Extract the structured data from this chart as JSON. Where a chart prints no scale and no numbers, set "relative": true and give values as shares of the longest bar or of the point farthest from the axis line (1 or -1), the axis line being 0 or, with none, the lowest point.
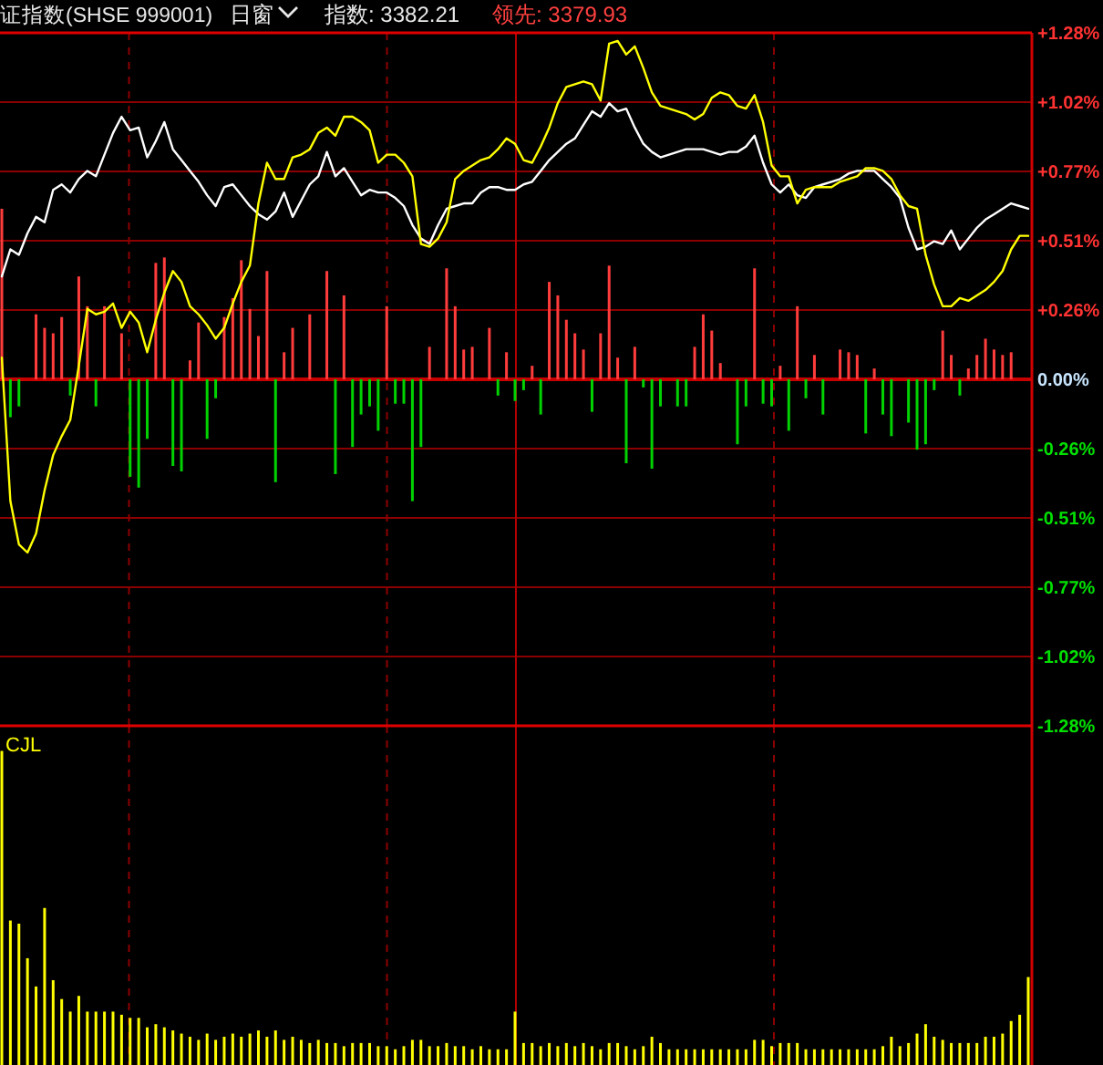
{
  "chart_data": [
    {
      "type": "line",
      "title": "证指数(SHSE 999001)",
      "annotations": [
        "日窗",
        "指数: 3382.21",
        "领先: 3379.93"
      ],
      "categories": [
        null,
        null,
        null,
        null,
        null,
        null,
        null,
        null,
        null,
        null,
        null,
        null,
        null,
        null,
        null,
        null,
        null,
        null,
        null,
        null,
        null,
        null,
        null,
        null,
        null,
        null,
        null,
        null,
        null,
        null,
        null,
        null,
        null,
        null,
        null,
        null,
        null,
        null,
        null,
        null,
        null,
        null,
        null,
        null,
        null,
        null,
        null,
        null,
        null,
        null,
        null,
        null,
        null,
        null,
        null,
        null,
        null,
        null,
        null,
        null,
        null,
        null,
        null,
        null,
        null,
        null,
        null,
        null,
        null,
        null,
        null,
        null,
        null,
        null,
        null,
        null,
        null,
        null,
        null,
        null,
        null,
        null,
        null,
        null,
        null,
        null,
        null,
        null,
        null,
        null,
        null,
        null,
        null,
        null,
        null,
        null,
        null,
        null,
        null,
        null,
        null,
        null,
        null,
        null,
        null,
        null,
        null,
        null,
        null,
        null,
        null,
        null,
        null,
        null,
        null,
        null,
        null,
        null,
        null,
        null,
        null
      ],
      "ylim": [
        -1.28,
        1.28
      ],
      "yticks": [
        {
          "value": -1.28,
          "label": "-1.28%"
        },
        {
          "value": -1.024,
          "label": "-1.02%"
        },
        {
          "value": -0.768,
          "label": "-0.77%"
        },
        {
          "value": -0.512,
          "label": "-0.51%"
        },
        {
          "value": -0.256,
          "label": "-0.26%"
        },
        {
          "value": 0,
          "label": "0.00%"
        },
        {
          "value": 0.256,
          "label": "+0.26%"
        },
        {
          "value": 0.512,
          "label": "+0.51%"
        },
        {
          "value": 0.768,
          "label": "+0.77%"
        },
        {
          "value": 1.024,
          "label": "+1.02%"
        },
        {
          "value": 1.28,
          "label": "+1.28%"
        }
      ],
      "tick_labels": "y",
      "grid": true,
      "line_style": "solid",
      "ref_lines": [
        {
          "axis": "y",
          "value": 0,
          "color": "#c80000"
        }
      ],
      "series": [
        {
          "type": "bar",
          "values": [
            0.63,
            -0.14,
            -0.1,
            0,
            0.24,
            0.19,
            0.17,
            0.23,
            -0.06,
            0.38,
            0.27,
            -0.1,
            0.27,
            0,
            0.17,
            -0.36,
            -0.4,
            -0.22,
            0.43,
            0.45,
            -0.32,
            -0.34,
            0.07,
            0.21,
            -0.22,
            -0.07,
            0.23,
            0.3,
            0.44,
            0.26,
            0.16,
            0.4,
            -0.38,
            0.1,
            0.19,
            0,
            0.24,
            0,
            0.4,
            -0.35,
            0.31,
            -0.25,
            -0.13,
            -0.1,
            -0.19,
            0.27,
            -0.09,
            -0.09,
            -0.45,
            -0.25,
            0.12,
            0,
            0.41,
            0.27,
            0.11,
            0.12,
            0,
            0.19,
            -0.06,
            0.1,
            -0.08,
            -0.04,
            0.05,
            -0.13,
            0.36,
            0.31,
            0.22,
            0.17,
            0.11,
            -0.12,
            0.17,
            0.42,
            0.08,
            -0.31,
            0.12,
            -0.03,
            -0.33,
            -0.1,
            0,
            -0.1,
            -0.1,
            0.12,
            0.24,
            0.18,
            0.06,
            0,
            -0.24,
            -0.1,
            0.41,
            -0.09,
            -0.1,
            0.05,
            -0.19,
            0.27,
            -0.07,
            0.09,
            -0.13,
            0,
            0.11,
            0.1,
            0.09,
            -0.2,
            0.04,
            -0.13,
            -0.21,
            0,
            -0.16,
            -0.26,
            -0.24,
            -0.04,
            0.18,
            0.09,
            -0.06,
            0.04,
            0.09,
            0.15,
            0.11,
            0.09,
            0.1,
            0,
            0
          ],
          "colors": [
            "#ff3c3c",
            "#00d200",
            "#00d200",
            "#ff3c3c",
            "#ff3c3c",
            "#ff3c3c",
            "#ff3c3c",
            "#ff3c3c",
            "#00d200",
            "#ff3c3c",
            "#ff3c3c",
            "#00d200",
            "#ff3c3c",
            "#ff3c3c",
            "#ff3c3c",
            "#00d200",
            "#00d200",
            "#00d200",
            "#ff3c3c",
            "#ff3c3c",
            "#00d200",
            "#00d200",
            "#ff3c3c",
            "#ff3c3c",
            "#00d200",
            "#00d200",
            "#ff3c3c",
            "#ff3c3c",
            "#ff3c3c",
            "#ff3c3c",
            "#ff3c3c",
            "#ff3c3c",
            "#00d200",
            "#ff3c3c",
            "#ff3c3c",
            "#ff3c3c",
            "#ff3c3c",
            "#ff3c3c",
            "#ff3c3c",
            "#00d200",
            "#ff3c3c",
            "#00d200",
            "#00d200",
            "#00d200",
            "#00d200",
            "#ff3c3c",
            "#00d200",
            "#00d200",
            "#00d200",
            "#00d200",
            "#ff3c3c",
            "#ff3c3c",
            "#ff3c3c",
            "#ff3c3c",
            "#ff3c3c",
            "#ff3c3c",
            "#ff3c3c",
            "#ff3c3c",
            "#00d200",
            "#ff3c3c",
            "#00d200",
            "#00d200",
            "#ff3c3c",
            "#00d200",
            "#ff3c3c",
            "#ff3c3c",
            "#ff3c3c",
            "#ff3c3c",
            "#ff3c3c",
            "#00d200",
            "#ff3c3c",
            "#ff3c3c",
            "#ff3c3c",
            "#00d200",
            "#ff3c3c",
            "#00d200",
            "#00d200",
            "#00d200",
            "#ff3c3c",
            "#00d200",
            "#00d200",
            "#ff3c3c",
            "#ff3c3c",
            "#ff3c3c",
            "#ff3c3c",
            "#ff3c3c",
            "#00d200",
            "#00d200",
            "#ff3c3c",
            "#00d200",
            "#00d200",
            "#ff3c3c",
            "#00d200",
            "#ff3c3c",
            "#00d200",
            "#ff3c3c",
            "#00d200",
            "#ff3c3c",
            "#ff3c3c",
            "#ff3c3c",
            "#ff3c3c",
            "#00d200",
            "#ff3c3c",
            "#00d200",
            "#00d200",
            "#ff3c3c",
            "#00d200",
            "#00d200",
            "#00d200",
            "#00d200",
            "#ff3c3c",
            "#ff3c3c",
            "#00d200",
            "#ff3c3c",
            "#ff3c3c",
            "#ff3c3c",
            "#ff3c3c",
            "#ff3c3c",
            "#ff3c3c",
            "#ff3c3c",
            "#ff3c3c"
          ]
        },
        {
          "type": "line",
          "color": "#ffffff",
          "values": [
            0.38,
            0.48,
            0.46,
            0.54,
            0.6,
            0.58,
            0.7,
            0.72,
            0.69,
            0.74,
            0.77,
            0.75,
            0.83,
            0.91,
            0.97,
            0.92,
            0.93,
            0.82,
            0.88,
            0.95,
            0.85,
            0.81,
            0.77,
            0.73,
            0.68,
            0.64,
            0.71,
            0.72,
            0.68,
            0.64,
            0.61,
            0.59,
            0.62,
            0.69,
            0.6,
            0.66,
            0.72,
            0.75,
            0.84,
            0.75,
            0.78,
            0.73,
            0.68,
            0.7,
            0.69,
            0.69,
            0.67,
            0.64,
            0.57,
            0.52,
            0.5,
            0.57,
            0.63,
            0.64,
            0.65,
            0.65,
            0.69,
            0.71,
            0.71,
            0.7,
            0.7,
            0.72,
            0.73,
            0.77,
            0.81,
            0.84,
            0.87,
            0.89,
            0.94,
            0.99,
            0.97,
            1.02,
            0.99,
            1.0,
            0.93,
            0.87,
            0.84,
            0.82,
            0.83,
            0.84,
            0.85,
            0.85,
            0.85,
            0.84,
            0.83,
            0.84,
            0.84,
            0.86,
            0.9,
            0.8,
            0.72,
            0.69,
            0.72,
            0.68,
            0.67,
            0.71,
            0.72,
            0.73,
            0.74,
            0.76,
            0.77,
            0.77,
            0.77,
            0.74,
            0.71,
            0.67,
            0.56,
            0.48,
            0.49,
            0.51,
            0.5,
            0.55,
            0.48,
            0.52,
            0.56,
            0.59,
            0.61,
            0.63,
            0.65,
            0.64,
            0.63
          ]
        },
        {
          "type": "line",
          "color": "#ffff00",
          "values": [
            0.08,
            -0.45,
            -0.61,
            -0.64,
            -0.57,
            -0.41,
            -0.28,
            -0.21,
            -0.15,
            0.05,
            0.26,
            0.24,
            0.25,
            0.28,
            0.19,
            0.25,
            0.21,
            0.1,
            0.22,
            0.32,
            0.4,
            0.36,
            0.27,
            0.24,
            0.2,
            0.15,
            0.19,
            0.28,
            0.36,
            0.42,
            0.65,
            0.8,
            0.74,
            0.74,
            0.82,
            0.83,
            0.85,
            0.91,
            0.93,
            0.9,
            0.97,
            0.97,
            0.95,
            0.92,
            0.8,
            0.83,
            0.83,
            0.8,
            0.75,
            0.5,
            0.49,
            0.52,
            0.58,
            0.74,
            0.77,
            0.79,
            0.81,
            0.82,
            0.85,
            0.89,
            0.87,
            0.81,
            0.8,
            0.86,
            0.93,
            1.02,
            1.08,
            1.09,
            1.1,
            1.09,
            1.03,
            1.24,
            1.25,
            1.2,
            1.23,
            1.15,
            1.06,
            1.01,
            1.0,
            0.99,
            0.98,
            0.96,
            0.98,
            1.04,
            1.06,
            1.05,
            1.01,
            1.0,
            1.05,
            0.95,
            0.79,
            0.75,
            0.75,
            0.65,
            0.7,
            0.71,
            0.71,
            0.71,
            0.73,
            0.74,
            0.75,
            0.78,
            0.78,
            0.77,
            0.74,
            0.68,
            0.64,
            0.63,
            0.46,
            0.35,
            0.27,
            0.27,
            0.3,
            0.29,
            0.31,
            0.33,
            0.36,
            0.4,
            0.48,
            0.53,
            0.53
          ]
        }
      ]
    },
    {
      "type": "bar",
      "title": "CJL",
      "relative": true,
      "color": "#ffff00",
      "grid": "x",
      "tick_labels": false,
      "categories": [
        null,
        null,
        null,
        null,
        null,
        null,
        null,
        null,
        null,
        null,
        null,
        null,
        null,
        null,
        null,
        null,
        null,
        null,
        null,
        null,
        null,
        null,
        null,
        null,
        null,
        null,
        null,
        null,
        null,
        null,
        null,
        null,
        null,
        null,
        null,
        null,
        null,
        null,
        null,
        null,
        null,
        null,
        null,
        null,
        null,
        null,
        null,
        null,
        null,
        null,
        null,
        null,
        null,
        null,
        null,
        null,
        null,
        null,
        null,
        null,
        null,
        null,
        null,
        null,
        null,
        null,
        null,
        null,
        null,
        null,
        null,
        null,
        null,
        null,
        null,
        null,
        null,
        null,
        null,
        null,
        null,
        null,
        null,
        null,
        null,
        null,
        null,
        null,
        null,
        null,
        null,
        null,
        null,
        null,
        null,
        null,
        null,
        null,
        null,
        null,
        null,
        null,
        null,
        null,
        null,
        null,
        null,
        null,
        null,
        null,
        null,
        null,
        null,
        null,
        null,
        null,
        null,
        null,
        null,
        null,
        null
      ],
      "values": [
        1.0,
        0.46,
        0.45,
        0.34,
        0.25,
        0.5,
        0.27,
        0.21,
        0.17,
        0.22,
        0.17,
        0.17,
        0.17,
        0.17,
        0.16,
        0.15,
        0.15,
        0.12,
        0.13,
        0.12,
        0.11,
        0.1,
        0.09,
        0.08,
        0.1,
        0.08,
        0.09,
        0.1,
        0.09,
        0.1,
        0.11,
        0.09,
        0.11,
        0.08,
        0.09,
        0.08,
        0.07,
        0.08,
        0.07,
        0.07,
        0.06,
        0.07,
        0.07,
        0.07,
        0.06,
        0.06,
        0.05,
        0.06,
        0.08,
        0.08,
        0.06,
        0.06,
        0.07,
        0.06,
        0.06,
        0.05,
        0.06,
        0.05,
        0.05,
        0.05,
        0.17,
        0.07,
        0.07,
        0.06,
        0.07,
        0.06,
        0.07,
        0.06,
        0.07,
        0.06,
        0.05,
        0.07,
        0.07,
        0.06,
        0.05,
        0.06,
        0.09,
        0.07,
        0.05,
        0.05,
        0.05,
        0.05,
        0.05,
        0.05,
        0.05,
        0.05,
        0.05,
        0.05,
        0.08,
        0.08,
        0.06,
        0.07,
        0.07,
        0.07,
        0.05,
        0.05,
        0.05,
        0.05,
        0.05,
        0.05,
        0.05,
        0.05,
        0.05,
        0.06,
        0.09,
        0.06,
        0.07,
        0.1,
        0.13,
        0.09,
        0.08,
        0.07,
        0.07,
        0.07,
        0.07,
        0.09,
        0.09,
        0.1,
        0.14,
        0.16,
        0.28
      ]
    }
  ]
}
